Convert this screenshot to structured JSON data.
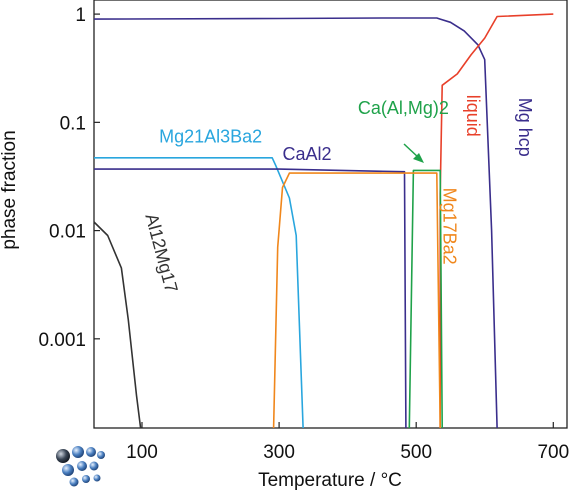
{
  "chart_data": {
    "type": "line",
    "title": "",
    "xlabel": "Temperature / °C",
    "ylabel": "phase fraction",
    "xlim": [
      30,
      720
    ],
    "ylim": [
      0.00015,
      1.35
    ],
    "yscale": "log",
    "grid": false,
    "legend": "none",
    "xticks": [
      100,
      300,
      500,
      700
    ],
    "xtick_labels": [
      "100",
      "300",
      "500",
      "700"
    ],
    "yticks": [
      0.001,
      0.01,
      0.1,
      1
    ],
    "ytick_labels": [
      "0.001",
      "0.01",
      "0.1",
      "1"
    ],
    "series": [
      {
        "name": "Mg hcp",
        "color": "#3a2e8c",
        "points": [
          [
            30,
            0.9
          ],
          [
            300,
            0.91
          ],
          [
            450,
            0.92
          ],
          [
            530,
            0.92
          ],
          [
            535,
            0.9
          ],
          [
            550,
            0.84
          ],
          [
            570,
            0.7
          ],
          [
            590,
            0.52
          ],
          [
            600,
            0.38
          ],
          [
            610,
            0.01
          ],
          [
            618,
            0.00015
          ]
        ]
      },
      {
        "name": "liquid",
        "color": "#e8402a",
        "points": [
          [
            535,
            0.00015
          ],
          [
            535,
            0.022
          ],
          [
            538,
            0.22
          ],
          [
            560,
            0.28
          ],
          [
            580,
            0.42
          ],
          [
            600,
            0.6
          ],
          [
            618,
            0.95
          ],
          [
            700,
            1.0
          ]
        ]
      },
      {
        "name": "Mg21Al3Ba2",
        "color": "#29a6de",
        "points": [
          [
            30,
            0.047
          ],
          [
            290,
            0.047
          ],
          [
            295,
            0.04
          ],
          [
            315,
            0.02
          ],
          [
            325,
            0.009
          ],
          [
            335,
            0.00015
          ]
        ]
      },
      {
        "name": "CaAl2",
        "color": "#3a2e8c",
        "points": [
          [
            30,
            0.037
          ],
          [
            300,
            0.037
          ],
          [
            480,
            0.035
          ],
          [
            483,
            0.035
          ],
          [
            485,
            0.00015
          ]
        ]
      },
      {
        "name": "Ca(Al,Mg)2",
        "color": "#1fa24a",
        "points": [
          [
            490,
            0.00015
          ],
          [
            496,
            0.036
          ],
          [
            535,
            0.036
          ],
          [
            538,
            0.00015
          ]
        ]
      },
      {
        "name": "Mg17Ba2",
        "color": "#f0871c",
        "points": [
          [
            292,
            0.00015
          ],
          [
            298,
            0.007
          ],
          [
            305,
            0.025
          ],
          [
            315,
            0.034
          ],
          [
            530,
            0.034
          ],
          [
            535,
            0.00015
          ]
        ]
      },
      {
        "name": "Al12Mg17",
        "color": "#333333",
        "points": [
          [
            30,
            0.012
          ],
          [
            50,
            0.009
          ],
          [
            70,
            0.0045
          ],
          [
            80,
            0.0015
          ],
          [
            92,
            0.0003
          ],
          [
            98,
            0.00015
          ]
        ]
      }
    ],
    "annotations": [
      {
        "text": "Mg hcp",
        "color": "#3a2e8c",
        "x": 650,
        "y": 0.09,
        "rotate": 90
      },
      {
        "text": "liquid",
        "color": "#e8402a",
        "x": 574,
        "y": 0.115,
        "rotate": 90
      },
      {
        "text": "Mg21Al3Ba2",
        "color": "#29a6de",
        "x": 125,
        "y": 0.065,
        "rotate": 0
      },
      {
        "text": "CaAl2",
        "color": "#3a2e8c",
        "x": 305,
        "y": 0.045,
        "rotate": 0
      },
      {
        "text": "Ca(Al,Mg)2",
        "color": "#1fa24a",
        "x": 415,
        "y": 0.12,
        "rotate": 0
      },
      {
        "text": "Mg17Ba2",
        "color": "#f0871c",
        "x": 540,
        "y": 0.011,
        "rotate": 90
      },
      {
        "text": "Al12Mg17",
        "color": "#333333",
        "x": 120,
        "y": 0.006,
        "rotate": 75
      }
    ]
  }
}
